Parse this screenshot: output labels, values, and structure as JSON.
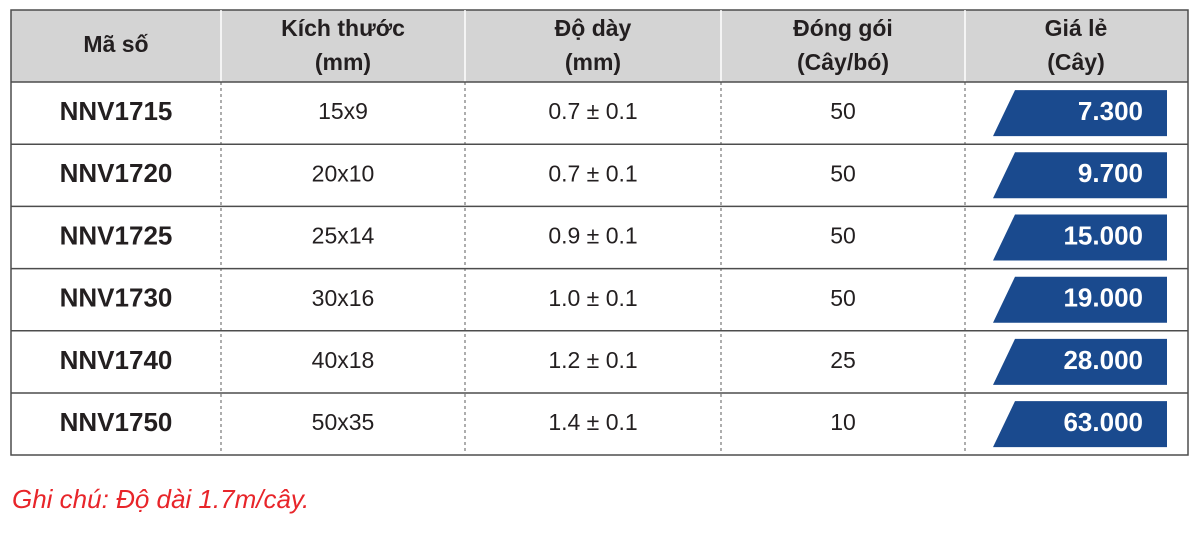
{
  "header": {
    "columns": [
      [
        "Mã số"
      ],
      [
        "Kích thước",
        "(mm)"
      ],
      [
        "Độ dày",
        "(mm)"
      ],
      [
        "Đóng gói",
        "(Cây/bó)"
      ],
      [
        "Giá lẻ",
        "(Cây)"
      ]
    ]
  },
  "table": {
    "rows": [
      [
        "NNV1715",
        "15x9",
        "0.7 ± 0.1",
        "50",
        "7.300"
      ],
      [
        "NNV1720",
        "20x10",
        "0.7 ± 0.1",
        "50",
        "9.700"
      ],
      [
        "NNV1725",
        "25x14",
        "0.9 ± 0.1",
        "50",
        "15.000"
      ],
      [
        "NNV1730",
        "30x16",
        "1.0 ± 0.1",
        "50",
        "19.000"
      ],
      [
        "NNV1740",
        "40x18",
        "1.2 ± 0.1",
        "25",
        "28.000"
      ],
      [
        "NNV1750",
        "50x35",
        "1.4 ± 0.1",
        "10",
        "63.000"
      ]
    ]
  },
  "note": "Ghi chú: Độ dài 1.7m/cây."
}
